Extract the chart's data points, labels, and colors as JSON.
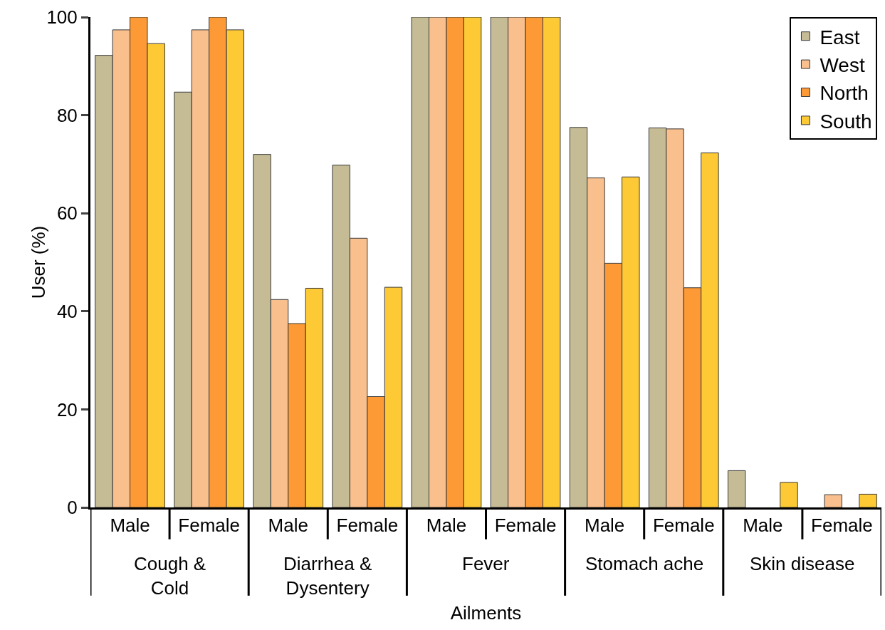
{
  "chart_data": {
    "type": "bar",
    "xlabel": "Ailments",
    "ylabel": "User (%)",
    "categories": [
      "Male",
      "Female",
      "Male",
      "Female",
      "Male",
      "Female",
      "Male",
      "Female",
      "Male",
      "Female"
    ],
    "annotations": [
      "Cough & Cold",
      "Diarrhea & Dysentery",
      "Fever",
      "Stomach ache",
      "Skin disease"
    ],
    "series": [
      {
        "name": "East",
        "color": "#c5bc96",
        "values": [
          92.2,
          84.7,
          72.0,
          69.8,
          100,
          100,
          77.5,
          77.4,
          7.5,
          null
        ]
      },
      {
        "name": "West",
        "color": "#f9bf8d",
        "values": [
          97.4,
          97.4,
          42.4,
          54.9,
          100,
          100,
          67.2,
          77.2,
          null,
          2.6
        ]
      },
      {
        "name": "North",
        "color": "#fd9a35",
        "values": [
          100,
          100,
          37.5,
          22.6,
          100,
          100,
          49.8,
          44.8,
          null,
          null
        ]
      },
      {
        "name": "South",
        "color": "#fdca35",
        "values": [
          94.6,
          97.4,
          44.7,
          44.9,
          100,
          100,
          67.4,
          72.3,
          5.1,
          2.7
        ]
      }
    ],
    "ylim": [
      0,
      100
    ],
    "yticks": [
      0,
      20,
      40,
      60,
      80,
      100
    ],
    "legend": "top right"
  }
}
